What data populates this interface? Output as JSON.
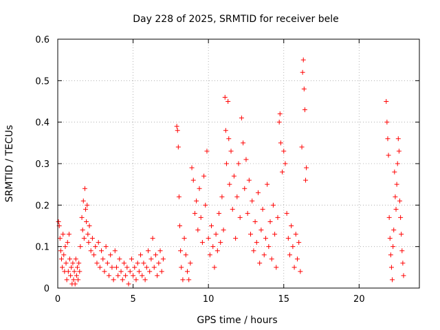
{
  "chart_data": {
    "type": "scatter",
    "title": "Day 228 of 2025, SRMTID for receiver bele",
    "xlabel": "GPS time / hours",
    "ylabel": "SRMTID / TECUs",
    "xlim": [
      0,
      24
    ],
    "ylim": [
      0,
      0.6
    ],
    "xticks": [
      0,
      5,
      10,
      15,
      20
    ],
    "xtick_labels": [
      "0",
      "5",
      "10",
      "15",
      "20"
    ],
    "yticks": [
      0,
      0.1,
      0.2,
      0.3,
      0.4,
      0.5,
      0.6
    ],
    "ytick_labels": [
      "0",
      "0.1",
      "0.2",
      "0.3",
      "0.4",
      "0.5",
      "0.6"
    ],
    "grid": true,
    "marker": "+",
    "color": "#ff0000",
    "series": [
      {
        "name": "SRMTID",
        "points": [
          [
            0.05,
            0.16
          ],
          [
            0.1,
            0.15
          ],
          [
            0.15,
            0.12
          ],
          [
            0.2,
            0.09
          ],
          [
            0.25,
            0.07
          ],
          [
            0.3,
            0.05
          ],
          [
            0.35,
            0.13
          ],
          [
            0.4,
            0.08
          ],
          [
            0.45,
            0.04
          ],
          [
            0.5,
            0.1
          ],
          [
            0.55,
            0.06
          ],
          [
            0.6,
            0.02
          ],
          [
            0.65,
            0.11
          ],
          [
            0.7,
            0.04
          ],
          [
            0.75,
            0.13
          ],
          [
            0.8,
            0.07
          ],
          [
            0.85,
            0.03
          ],
          [
            0.9,
            0.05
          ],
          [
            0.95,
            0.01
          ],
          [
            1.0,
            0.06
          ],
          [
            1.05,
            0.02
          ],
          [
            1.1,
            0.04
          ],
          [
            1.15,
            0.01
          ],
          [
            1.2,
            0.07
          ],
          [
            1.25,
            0.03
          ],
          [
            1.3,
            0.05
          ],
          [
            1.35,
            0.02
          ],
          [
            1.4,
            0.06
          ],
          [
            1.45,
            0.04
          ],
          [
            1.5,
            0.1
          ],
          [
            1.6,
            0.17
          ],
          [
            1.65,
            0.14
          ],
          [
            1.7,
            0.21
          ],
          [
            1.75,
            0.12
          ],
          [
            1.8,
            0.24
          ],
          [
            1.85,
            0.19
          ],
          [
            1.9,
            0.16
          ],
          [
            1.95,
            0.2
          ],
          [
            2.0,
            0.13
          ],
          [
            2.05,
            0.11
          ],
          [
            2.1,
            0.15
          ],
          [
            2.2,
            0.09
          ],
          [
            2.3,
            0.12
          ],
          [
            2.4,
            0.08
          ],
          [
            2.5,
            0.1
          ],
          [
            2.6,
            0.06
          ],
          [
            2.7,
            0.11
          ],
          [
            2.8,
            0.05
          ],
          [
            2.9,
            0.09
          ],
          [
            3.0,
            0.07
          ],
          [
            3.1,
            0.04
          ],
          [
            3.2,
            0.1
          ],
          [
            3.3,
            0.06
          ],
          [
            3.4,
            0.03
          ],
          [
            3.5,
            0.08
          ],
          [
            3.6,
            0.05
          ],
          [
            3.7,
            0.02
          ],
          [
            3.8,
            0.09
          ],
          [
            3.9,
            0.05
          ],
          [
            4.0,
            0.03
          ],
          [
            4.1,
            0.07
          ],
          [
            4.2,
            0.04
          ],
          [
            4.3,
            0.02
          ],
          [
            4.4,
            0.06
          ],
          [
            4.5,
            0.03
          ],
          [
            4.6,
            0.05
          ],
          [
            4.7,
            0.01
          ],
          [
            4.8,
            0.04
          ],
          [
            4.9,
            0.07
          ],
          [
            5.0,
            0.03
          ],
          [
            5.1,
            0.05
          ],
          [
            5.2,
            0.02
          ],
          [
            5.3,
            0.06
          ],
          [
            5.4,
            0.04
          ],
          [
            5.5,
            0.08
          ],
          [
            5.6,
            0.03
          ],
          [
            5.7,
            0.06
          ],
          [
            5.8,
            0.02
          ],
          [
            5.9,
            0.05
          ],
          [
            6.0,
            0.09
          ],
          [
            6.1,
            0.04
          ],
          [
            6.2,
            0.07
          ],
          [
            6.3,
            0.12
          ],
          [
            6.4,
            0.05
          ],
          [
            6.5,
            0.08
          ],
          [
            6.6,
            0.03
          ],
          [
            6.7,
            0.06
          ],
          [
            6.8,
            0.09
          ],
          [
            6.9,
            0.04
          ],
          [
            7.0,
            0.07
          ],
          [
            7.9,
            0.39
          ],
          [
            7.95,
            0.38
          ],
          [
            8.0,
            0.34
          ],
          [
            8.05,
            0.22
          ],
          [
            8.1,
            0.15
          ],
          [
            8.15,
            0.09
          ],
          [
            8.2,
            0.05
          ],
          [
            8.3,
            0.02
          ],
          [
            8.4,
            0.12
          ],
          [
            8.5,
            0.08
          ],
          [
            8.6,
            0.04
          ],
          [
            8.7,
            0.02
          ],
          [
            8.8,
            0.06
          ],
          [
            8.9,
            0.29
          ],
          [
            9.0,
            0.26
          ],
          [
            9.1,
            0.18
          ],
          [
            9.2,
            0.21
          ],
          [
            9.3,
            0.14
          ],
          [
            9.4,
            0.24
          ],
          [
            9.5,
            0.17
          ],
          [
            9.6,
            0.11
          ],
          [
            9.7,
            0.27
          ],
          [
            9.8,
            0.2
          ],
          [
            9.9,
            0.33
          ],
          [
            10.0,
            0.12
          ],
          [
            10.1,
            0.08
          ],
          [
            10.2,
            0.15
          ],
          [
            10.3,
            0.1
          ],
          [
            10.4,
            0.05
          ],
          [
            10.5,
            0.13
          ],
          [
            10.6,
            0.09
          ],
          [
            10.7,
            0.18
          ],
          [
            10.8,
            0.11
          ],
          [
            10.9,
            0.22
          ],
          [
            11.0,
            0.14
          ],
          [
            11.1,
            0.46
          ],
          [
            11.15,
            0.38
          ],
          [
            11.2,
            0.3
          ],
          [
            11.3,
            0.45
          ],
          [
            11.35,
            0.36
          ],
          [
            11.4,
            0.25
          ],
          [
            11.5,
            0.33
          ],
          [
            11.6,
            0.19
          ],
          [
            11.7,
            0.27
          ],
          [
            11.8,
            0.12
          ],
          [
            11.9,
            0.22
          ],
          [
            12.0,
            0.3
          ],
          [
            12.1,
            0.17
          ],
          [
            12.2,
            0.41
          ],
          [
            12.3,
            0.35
          ],
          [
            12.4,
            0.24
          ],
          [
            12.5,
            0.31
          ],
          [
            12.6,
            0.18
          ],
          [
            12.7,
            0.26
          ],
          [
            12.8,
            0.13
          ],
          [
            12.9,
            0.21
          ],
          [
            13.0,
            0.09
          ],
          [
            13.1,
            0.16
          ],
          [
            13.2,
            0.11
          ],
          [
            13.3,
            0.23
          ],
          [
            13.4,
            0.06
          ],
          [
            13.5,
            0.14
          ],
          [
            13.6,
            0.19
          ],
          [
            13.7,
            0.08
          ],
          [
            13.8,
            0.12
          ],
          [
            13.9,
            0.25
          ],
          [
            14.0,
            0.1
          ],
          [
            14.1,
            0.16
          ],
          [
            14.2,
            0.07
          ],
          [
            14.3,
            0.2
          ],
          [
            14.4,
            0.13
          ],
          [
            14.5,
            0.05
          ],
          [
            14.6,
            0.17
          ],
          [
            14.7,
            0.4
          ],
          [
            14.75,
            0.42
          ],
          [
            14.8,
            0.35
          ],
          [
            14.9,
            0.28
          ],
          [
            15.0,
            0.33
          ],
          [
            15.1,
            0.3
          ],
          [
            15.2,
            0.18
          ],
          [
            15.3,
            0.12
          ],
          [
            15.4,
            0.08
          ],
          [
            15.5,
            0.15
          ],
          [
            15.6,
            0.1
          ],
          [
            15.7,
            0.05
          ],
          [
            15.8,
            0.13
          ],
          [
            15.9,
            0.07
          ],
          [
            16.0,
            0.11
          ],
          [
            16.1,
            0.04
          ],
          [
            16.2,
            0.34
          ],
          [
            16.25,
            0.52
          ],
          [
            16.3,
            0.55
          ],
          [
            16.35,
            0.48
          ],
          [
            16.4,
            0.43
          ],
          [
            16.45,
            0.26
          ],
          [
            16.5,
            0.29
          ],
          [
            21.8,
            0.45
          ],
          [
            21.85,
            0.4
          ],
          [
            21.9,
            0.36
          ],
          [
            21.95,
            0.32
          ],
          [
            22.0,
            0.17
          ],
          [
            22.05,
            0.12
          ],
          [
            22.1,
            0.08
          ],
          [
            22.15,
            0.05
          ],
          [
            22.2,
            0.02
          ],
          [
            22.25,
            0.1
          ],
          [
            22.3,
            0.14
          ],
          [
            22.35,
            0.28
          ],
          [
            22.4,
            0.22
          ],
          [
            22.45,
            0.19
          ],
          [
            22.5,
            0.25
          ],
          [
            22.55,
            0.3
          ],
          [
            22.6,
            0.36
          ],
          [
            22.65,
            0.33
          ],
          [
            22.7,
            0.21
          ],
          [
            22.75,
            0.17
          ],
          [
            22.8,
            0.13
          ],
          [
            22.85,
            0.09
          ],
          [
            22.9,
            0.06
          ],
          [
            22.95,
            0.03
          ]
        ]
      }
    ]
  }
}
